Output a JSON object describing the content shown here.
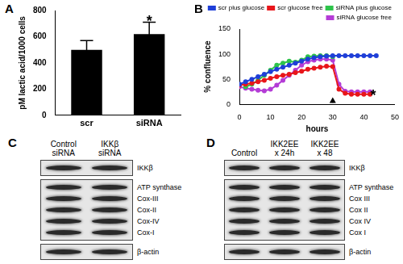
{
  "chart_data": [
    {
      "panel": "A",
      "type": "bar",
      "categories": [
        "scr",
        "siRNA"
      ],
      "values": [
        500,
        620
      ],
      "errors": [
        70,
        90
      ],
      "color": "#000000",
      "y_label": "pM lactic acid/1000 cells",
      "ylim": [
        0,
        800
      ],
      "yticks": [
        0,
        200,
        400,
        600,
        800
      ],
      "grid": false,
      "annotations": [
        {
          "text": "*",
          "x": "siRNA",
          "y": 740
        }
      ]
    },
    {
      "panel": "B",
      "type": "line",
      "x_label": "hours",
      "y_label": "% confluence",
      "x": [
        0,
        2,
        4,
        6,
        8,
        10,
        12,
        14,
        16,
        18,
        20,
        22,
        24,
        26,
        28,
        30,
        32,
        34,
        36,
        38,
        40,
        42,
        44
      ],
      "series": [
        {
          "name": "scr plus glucose",
          "color": "#1f3fd8",
          "values": [
            40,
            45,
            50,
            55,
            60,
            65,
            70,
            74,
            78,
            82,
            86,
            90,
            93,
            95,
            96,
            97,
            97,
            97,
            97,
            97,
            97,
            97,
            97
          ]
        },
        {
          "name": "scr glucose free",
          "color": "#e8161b",
          "values": [
            38,
            40,
            42,
            45,
            48,
            52,
            55,
            58,
            60,
            63,
            66,
            70,
            72,
            74,
            76,
            75,
            30,
            22,
            20,
            20,
            20,
            20,
            null
          ]
        },
        {
          "name": "siRNA plus glucose",
          "color": "#2ec44b",
          "values": [
            null,
            35,
            40,
            48,
            58,
            68,
            78,
            82,
            86,
            84,
            88,
            95,
            96,
            97,
            97,
            95,
            null,
            null,
            null,
            null,
            null,
            null,
            null
          ]
        },
        {
          "name": "siRNA glucose free",
          "color": "#b43cd6",
          "values": [
            35,
            32,
            30,
            28,
            27,
            30,
            38,
            48,
            58,
            68,
            78,
            85,
            88,
            90,
            90,
            88,
            40,
            26,
            25,
            25,
            25,
            25,
            null
          ]
        }
      ],
      "marker": "circle",
      "legend": "upper right",
      "xlim": [
        0,
        50
      ],
      "xticks": [
        0,
        10,
        20,
        30,
        40,
        50
      ],
      "ylim": [
        0,
        150
      ],
      "yticks": [
        0,
        50,
        100,
        150
      ],
      "grid": false,
      "annotations": [
        {
          "text": "*",
          "x": 43,
          "y": 22
        },
        {
          "marker": "arrow",
          "x": 30,
          "y": 14
        }
      ]
    }
  ],
  "blots": [
    {
      "panel": "C",
      "columns": [
        "Control siRNA",
        "IKKβ siRNA"
      ],
      "groups": [
        [
          "IKKβ"
        ],
        [
          "ATP synthase",
          "Cox-III",
          "Cox-II",
          "Cox-IV",
          "Cox-I"
        ],
        [
          "β-actin"
        ]
      ]
    },
    {
      "panel": "D",
      "columns": [
        "Control",
        "IKK2EE x 24h",
        "IKK2EE x 48"
      ],
      "groups": [
        [
          "IKKβ"
        ],
        [
          "ATP synthase",
          "Cox III",
          "Cox II",
          "Cox IV",
          "Cox I"
        ],
        [
          "β-actin"
        ]
      ]
    }
  ]
}
